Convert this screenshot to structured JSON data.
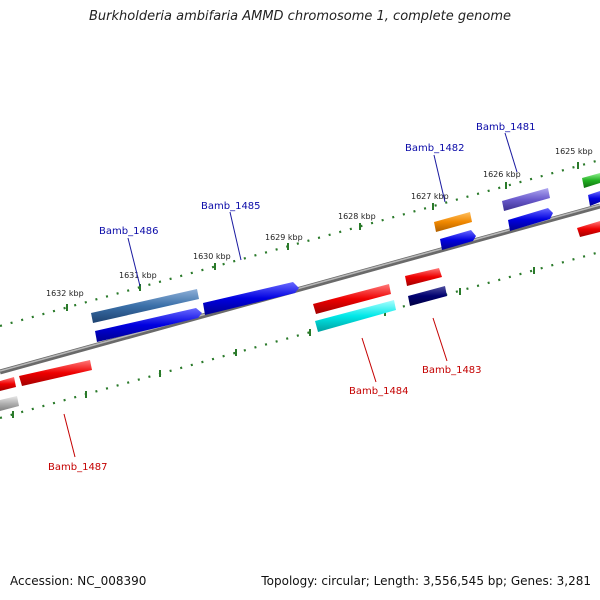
{
  "title": "Burkholderia ambifaria AMMD chromosome 1, complete genome",
  "accession": "Accession: NC_008390",
  "topology": "Topology: circular; Length: 3,556,545 bp; Genes: 3,281",
  "kbp_labels": [
    "1632 kbp",
    "1631 kbp",
    "1630 kbp",
    "1629 kbp",
    "1628 kbp",
    "1627 kbp",
    "1626 kbp",
    "1625 kbp"
  ],
  "top_gene_labels": [
    "Bamb_1486",
    "Bamb_1485",
    "Bamb_1482",
    "Bamb_1481"
  ],
  "bottom_gene_labels": [
    "Bamb_1487",
    "Bamb_1484",
    "Bamb_1483"
  ],
  "colors": {
    "red": "#e00000",
    "blue": "#0000dd",
    "steelblue": "#3a6fa8",
    "cyan": "#00e0e0",
    "navy": "#000070",
    "orange": "#f08800",
    "purple": "#6a5acd",
    "green": "#20b020",
    "gray": "#b0b0b0",
    "backbone": "#888888",
    "tick": "#2a7a2a"
  }
}
